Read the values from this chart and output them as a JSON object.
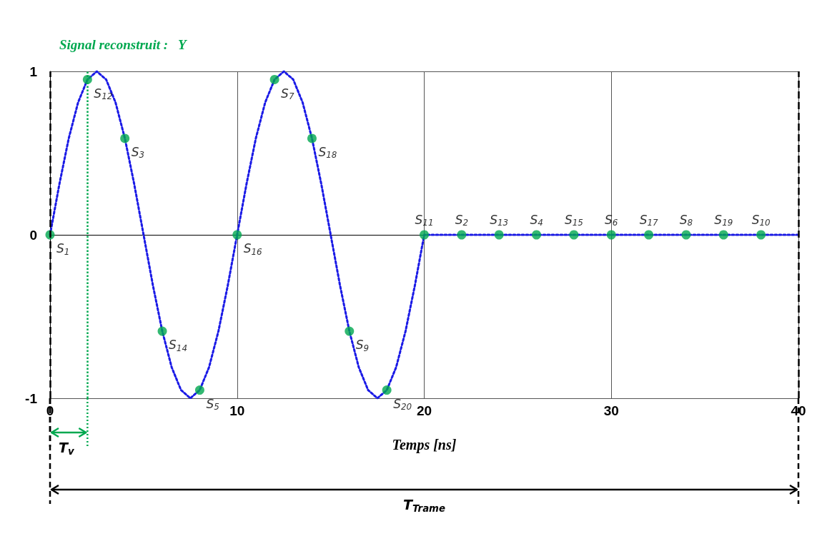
{
  "chart_data": {
    "type": "line",
    "title": "Signal reconstruit :   Y",
    "xlabel": "Temps [ns]",
    "xlim": [
      0,
      40
    ],
    "xticks": [
      0,
      10,
      20,
      30,
      40
    ],
    "ylim": [
      -1,
      1
    ],
    "yticks": [
      -1,
      0,
      1
    ],
    "grid": true,
    "series": [
      {
        "color": "#1a1ae6",
        "line_style": "dotted",
        "marker": "none",
        "x": [
          0,
          0.5,
          1,
          1.5,
          2,
          2.5,
          3,
          3.5,
          4,
          4.5,
          5,
          5.5,
          6,
          6.5,
          7,
          7.5,
          8,
          8.5,
          9,
          9.5,
          10,
          10.5,
          11,
          11.5,
          12,
          12.5,
          13,
          13.5,
          14,
          14.5,
          15,
          15.5,
          16,
          16.5,
          17,
          17.5,
          18,
          18.5,
          19,
          19.5,
          20,
          40
        ],
        "values": [
          0,
          0.31,
          0.59,
          0.81,
          0.95,
          1,
          0.95,
          0.81,
          0.59,
          0.31,
          0,
          -0.31,
          -0.59,
          -0.81,
          -0.95,
          -1,
          -0.95,
          -0.81,
          -0.59,
          -0.31,
          0,
          0.31,
          0.59,
          0.81,
          0.95,
          1,
          0.95,
          0.81,
          0.59,
          0.31,
          0,
          -0.31,
          -0.59,
          -0.81,
          -0.95,
          -1,
          -0.95,
          -0.81,
          -0.59,
          -0.31,
          0,
          0
        ]
      },
      {
        "type": "scatter",
        "color": "#00a84f",
        "marker": "circle",
        "x": [
          0,
          2,
          4,
          6,
          8,
          10,
          12,
          14,
          16,
          18,
          20,
          22,
          24,
          26,
          28,
          30,
          32,
          34,
          36,
          38
        ],
        "values": [
          0,
          0.95,
          0.59,
          -0.59,
          -0.95,
          0,
          0.95,
          0.59,
          -0.59,
          -0.95,
          0,
          0,
          0,
          0,
          0,
          0,
          0,
          0,
          0,
          0
        ]
      }
    ],
    "ref_lines": [
      {
        "axis": "x",
        "value": 0,
        "color": "#000000",
        "line_style": "dashed"
      },
      {
        "axis": "x",
        "value": 2,
        "color": "#00a84f",
        "line_style": "dotted"
      },
      {
        "axis": "x",
        "value": 40,
        "color": "#000000",
        "line_style": "dashed"
      }
    ],
    "annotations": [
      {
        "text": "S$_{1}$",
        "x": 0,
        "y": 0
      },
      {
        "text": "S$_{12}$",
        "x": 2,
        "y": 0.95
      },
      {
        "text": "S$_{3}$",
        "x": 4,
        "y": 0.59
      },
      {
        "text": "S$_{14}$",
        "x": 6,
        "y": -0.59
      },
      {
        "text": "S$_{5}$",
        "x": 8,
        "y": -0.95
      },
      {
        "text": "S$_{16}$",
        "x": 10,
        "y": 0
      },
      {
        "text": "S$_{7}$",
        "x": 12,
        "y": 0.95
      },
      {
        "text": "S$_{18}$",
        "x": 14,
        "y": 0.59
      },
      {
        "text": "S$_{9}$",
        "x": 16,
        "y": -0.59
      },
      {
        "text": "S$_{20}$",
        "x": 18,
        "y": -0.95
      },
      {
        "text": "S$_{11}$",
        "x": 20,
        "y": 0
      },
      {
        "text": "S$_{2}$",
        "x": 22,
        "y": 0
      },
      {
        "text": "S$_{13}$",
        "x": 24,
        "y": 0
      },
      {
        "text": "S$_{4}$",
        "x": 26,
        "y": 0
      },
      {
        "text": "S$_{15}$",
        "x": 28,
        "y": 0
      },
      {
        "text": "S$_{6}$",
        "x": 30,
        "y": 0
      },
      {
        "text": "S$_{17}$",
        "x": 32,
        "y": 0
      },
      {
        "text": "S$_{8}$",
        "x": 34,
        "y": 0
      },
      {
        "text": "S$_{19}$",
        "x": 36,
        "y": 0
      },
      {
        "text": "S$_{10}$",
        "x": 38,
        "y": 0
      },
      "T$_{v}$",
      "T$_{Trame}$"
    ]
  }
}
